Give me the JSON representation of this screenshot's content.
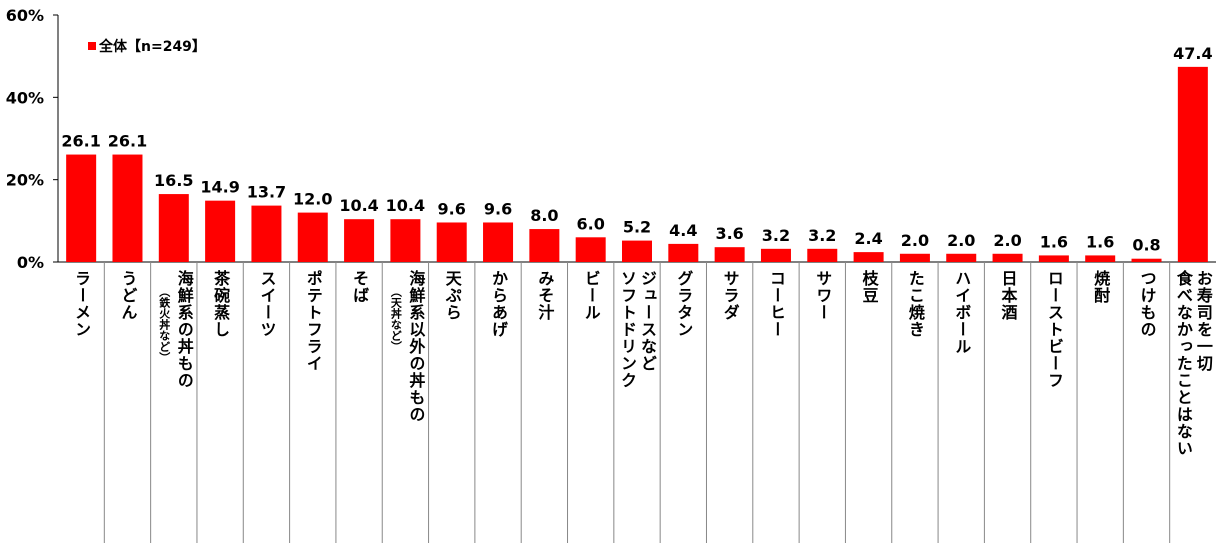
{
  "chart_data": {
    "type": "bar",
    "ylim": [
      0,
      60
    ],
    "yticks": [
      "0%",
      "20%",
      "40%",
      "60%"
    ],
    "categories": [
      "ラーメン",
      "うどん",
      "海鮮系の丼もの",
      "茶碗蒸し",
      "スイーツ",
      "ポテトフライ",
      "そば",
      "海鮮系以外の丼もの",
      "天ぷら",
      "からあげ",
      "みそ汁",
      "ビール",
      "ジュースなど ソフトドリンク",
      "グラタン",
      "サラダ",
      "コーヒー",
      "サワー",
      "枝豆",
      "たこ焼き",
      "ハイボール",
      "日本酒",
      "ローストビーフ",
      "焼酎",
      "つけもの",
      "お寿司を一切 食べなかったことはない"
    ],
    "category_notes": [
      "",
      "",
      "（鉄火丼など）",
      "",
      "",
      "",
      "",
      "（天丼など）",
      "",
      "",
      "",
      "",
      "",
      "",
      "",
      "",
      "",
      "",
      "",
      "",
      "",
      "",
      "",
      "",
      ""
    ],
    "series": [
      {
        "name": "全体【n=249】",
        "values": [
          26.1,
          26.1,
          16.5,
          14.9,
          13.7,
          12.0,
          10.4,
          10.4,
          9.6,
          9.6,
          8.0,
          6.0,
          5.2,
          4.4,
          3.6,
          3.2,
          3.2,
          2.4,
          2.0,
          2.0,
          2.0,
          1.6,
          1.6,
          0.8,
          47.4
        ],
        "labels": [
          "26.1",
          "26.1",
          "16.5",
          "14.9",
          "13.7",
          "12.0",
          "10.4",
          "10.4",
          "9.6",
          "9.6",
          "8.0",
          "6.0",
          "5.2",
          "4.4",
          "3.6",
          "3.2",
          "3.2",
          "2.4",
          "2.0",
          "2.0",
          "2.0",
          "1.6",
          "1.6",
          "0.8",
          "47.4"
        ]
      }
    ],
    "legend": {
      "position": "top-left"
    },
    "grid": false
  },
  "colors": {
    "bar": "#ff0000",
    "axis": "#000000",
    "divider": "#888888"
  }
}
